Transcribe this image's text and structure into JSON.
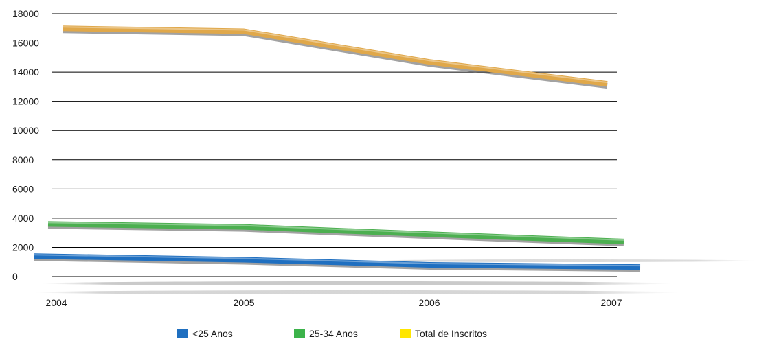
{
  "chart_data": {
    "type": "line",
    "title": "",
    "xlabel": "",
    "ylabel": "",
    "categories": [
      "2004",
      "2005",
      "2006",
      "2007"
    ],
    "ylim": [
      0,
      18000
    ],
    "yticks": [
      0,
      2000,
      4000,
      6000,
      8000,
      10000,
      12000,
      14000,
      16000,
      18000
    ],
    "grid": true,
    "legend_position": "bottom",
    "series": [
      {
        "name": "<25 Anos",
        "color": "#1f6fc0",
        "values": [
          1400,
          1150,
          800,
          650
        ]
      },
      {
        "name": "25-34 Anos",
        "color": "#4caf50",
        "values": [
          3600,
          3400,
          2900,
          2400
        ]
      },
      {
        "name": "Total de Inscritos",
        "color": "#e0a84a",
        "values": [
          17000,
          16800,
          14700,
          13200
        ]
      }
    ]
  },
  "legend": {
    "items": [
      {
        "label": "<25 Anos",
        "color": "#1f6fc0"
      },
      {
        "label": "25-34 Anos",
        "color": "#3cb34a"
      },
      {
        "label": "Total de Inscritos",
        "color": "#ffe600"
      }
    ]
  }
}
